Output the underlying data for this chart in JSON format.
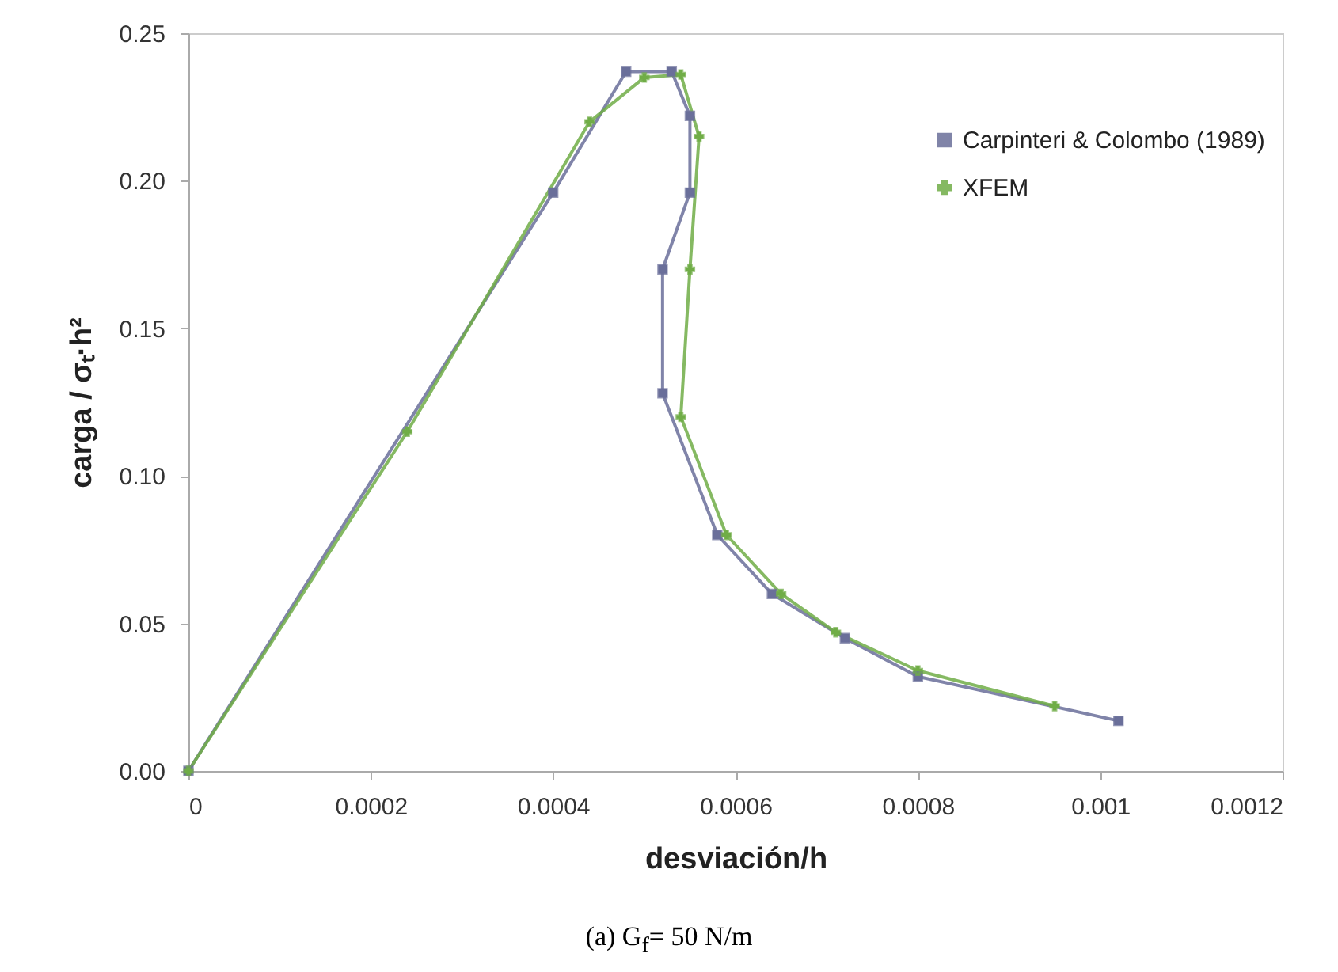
{
  "chart_data": {
    "type": "line",
    "xlabel": "desviación/h",
    "ylabel": "carga / σₜ·h²",
    "annotations": [
      "(a) G$_{f}$= 50 N/m"
    ],
    "xlim": [
      0,
      0.0012
    ],
    "ylim": [
      0,
      0.25
    ],
    "xticks": [
      0,
      0.0002,
      0.0004,
      0.0006,
      0.0008,
      0.001,
      0.0012
    ],
    "yticks": [
      {
        "value": 0,
        "label": "0.00"
      },
      {
        "value": 0.05,
        "label": "0.05"
      },
      {
        "value": 0.1,
        "label": "0.10"
      },
      {
        "value": 0.15,
        "label": "0.15"
      },
      {
        "value": 0.2,
        "label": "0.20"
      },
      {
        "value": 0.25,
        "label": "0.25"
      }
    ],
    "grid": false,
    "legend": "top right",
    "series": [
      {
        "name": "Carpinteri & Colombo (1989)",
        "color": "#6a6f9a",
        "marker": "square",
        "x": [
          0,
          0.0004,
          0.00048,
          0.00053,
          0.00055,
          0.00055,
          0.00052,
          0.00052,
          0.00058,
          0.00064,
          0.00072,
          0.0008,
          0.00102
        ],
        "values": [
          0,
          0.196,
          0.237,
          0.237,
          0.222,
          0.196,
          0.17,
          0.128,
          0.08,
          0.06,
          0.045,
          0.032,
          0.017
        ]
      },
      {
        "name": "XFEM",
        "color": "#70ad47",
        "marker": "cross",
        "x": [
          0,
          0.00024,
          0.00044,
          0.0005,
          0.00054,
          0.00056,
          0.00055,
          0.00054,
          0.00059,
          0.00065,
          0.00071,
          0.0008,
          0.00095
        ],
        "values": [
          0,
          0.115,
          0.22,
          0.235,
          0.236,
          0.215,
          0.17,
          0.12,
          0.08,
          0.06,
          0.047,
          0.034,
          0.022
        ]
      }
    ]
  }
}
